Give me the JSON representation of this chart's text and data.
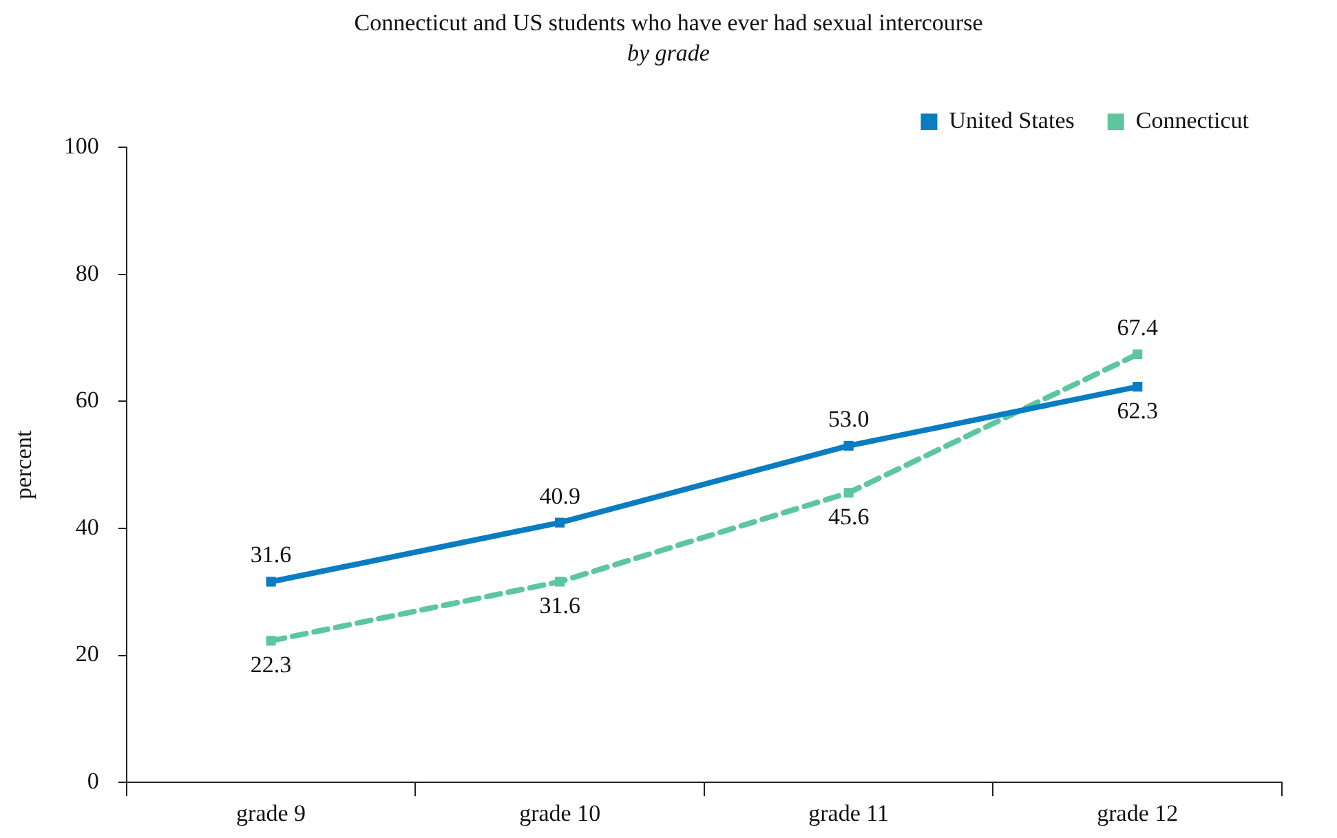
{
  "chart_data": {
    "type": "line",
    "title": "Connecticut and US students who have ever had sexual intercourse",
    "subtitle": "by grade",
    "ylabel": "percent",
    "categories": [
      "grade 9",
      "grade 10",
      "grade 11",
      "grade 12"
    ],
    "series": [
      {
        "name": "United States",
        "color": "#0a7cc1",
        "values": [
          31.6,
          40.9,
          53.0,
          62.3
        ],
        "value_labels": [
          "31.6",
          "40.9",
          "53.0",
          "62.3"
        ],
        "line_style": "solid"
      },
      {
        "name": "Connecticut",
        "color": "#5cc6a0",
        "values": [
          22.3,
          31.6,
          45.6,
          67.4
        ],
        "value_labels": [
          "22.3",
          "31.6",
          "45.6",
          "67.4"
        ],
        "line_style": "dashed"
      }
    ],
    "ylim": [
      0,
      100
    ],
    "yticks": [
      0,
      20,
      40,
      60,
      80,
      100
    ],
    "grid": false,
    "legend": "top right",
    "marker": "square"
  }
}
